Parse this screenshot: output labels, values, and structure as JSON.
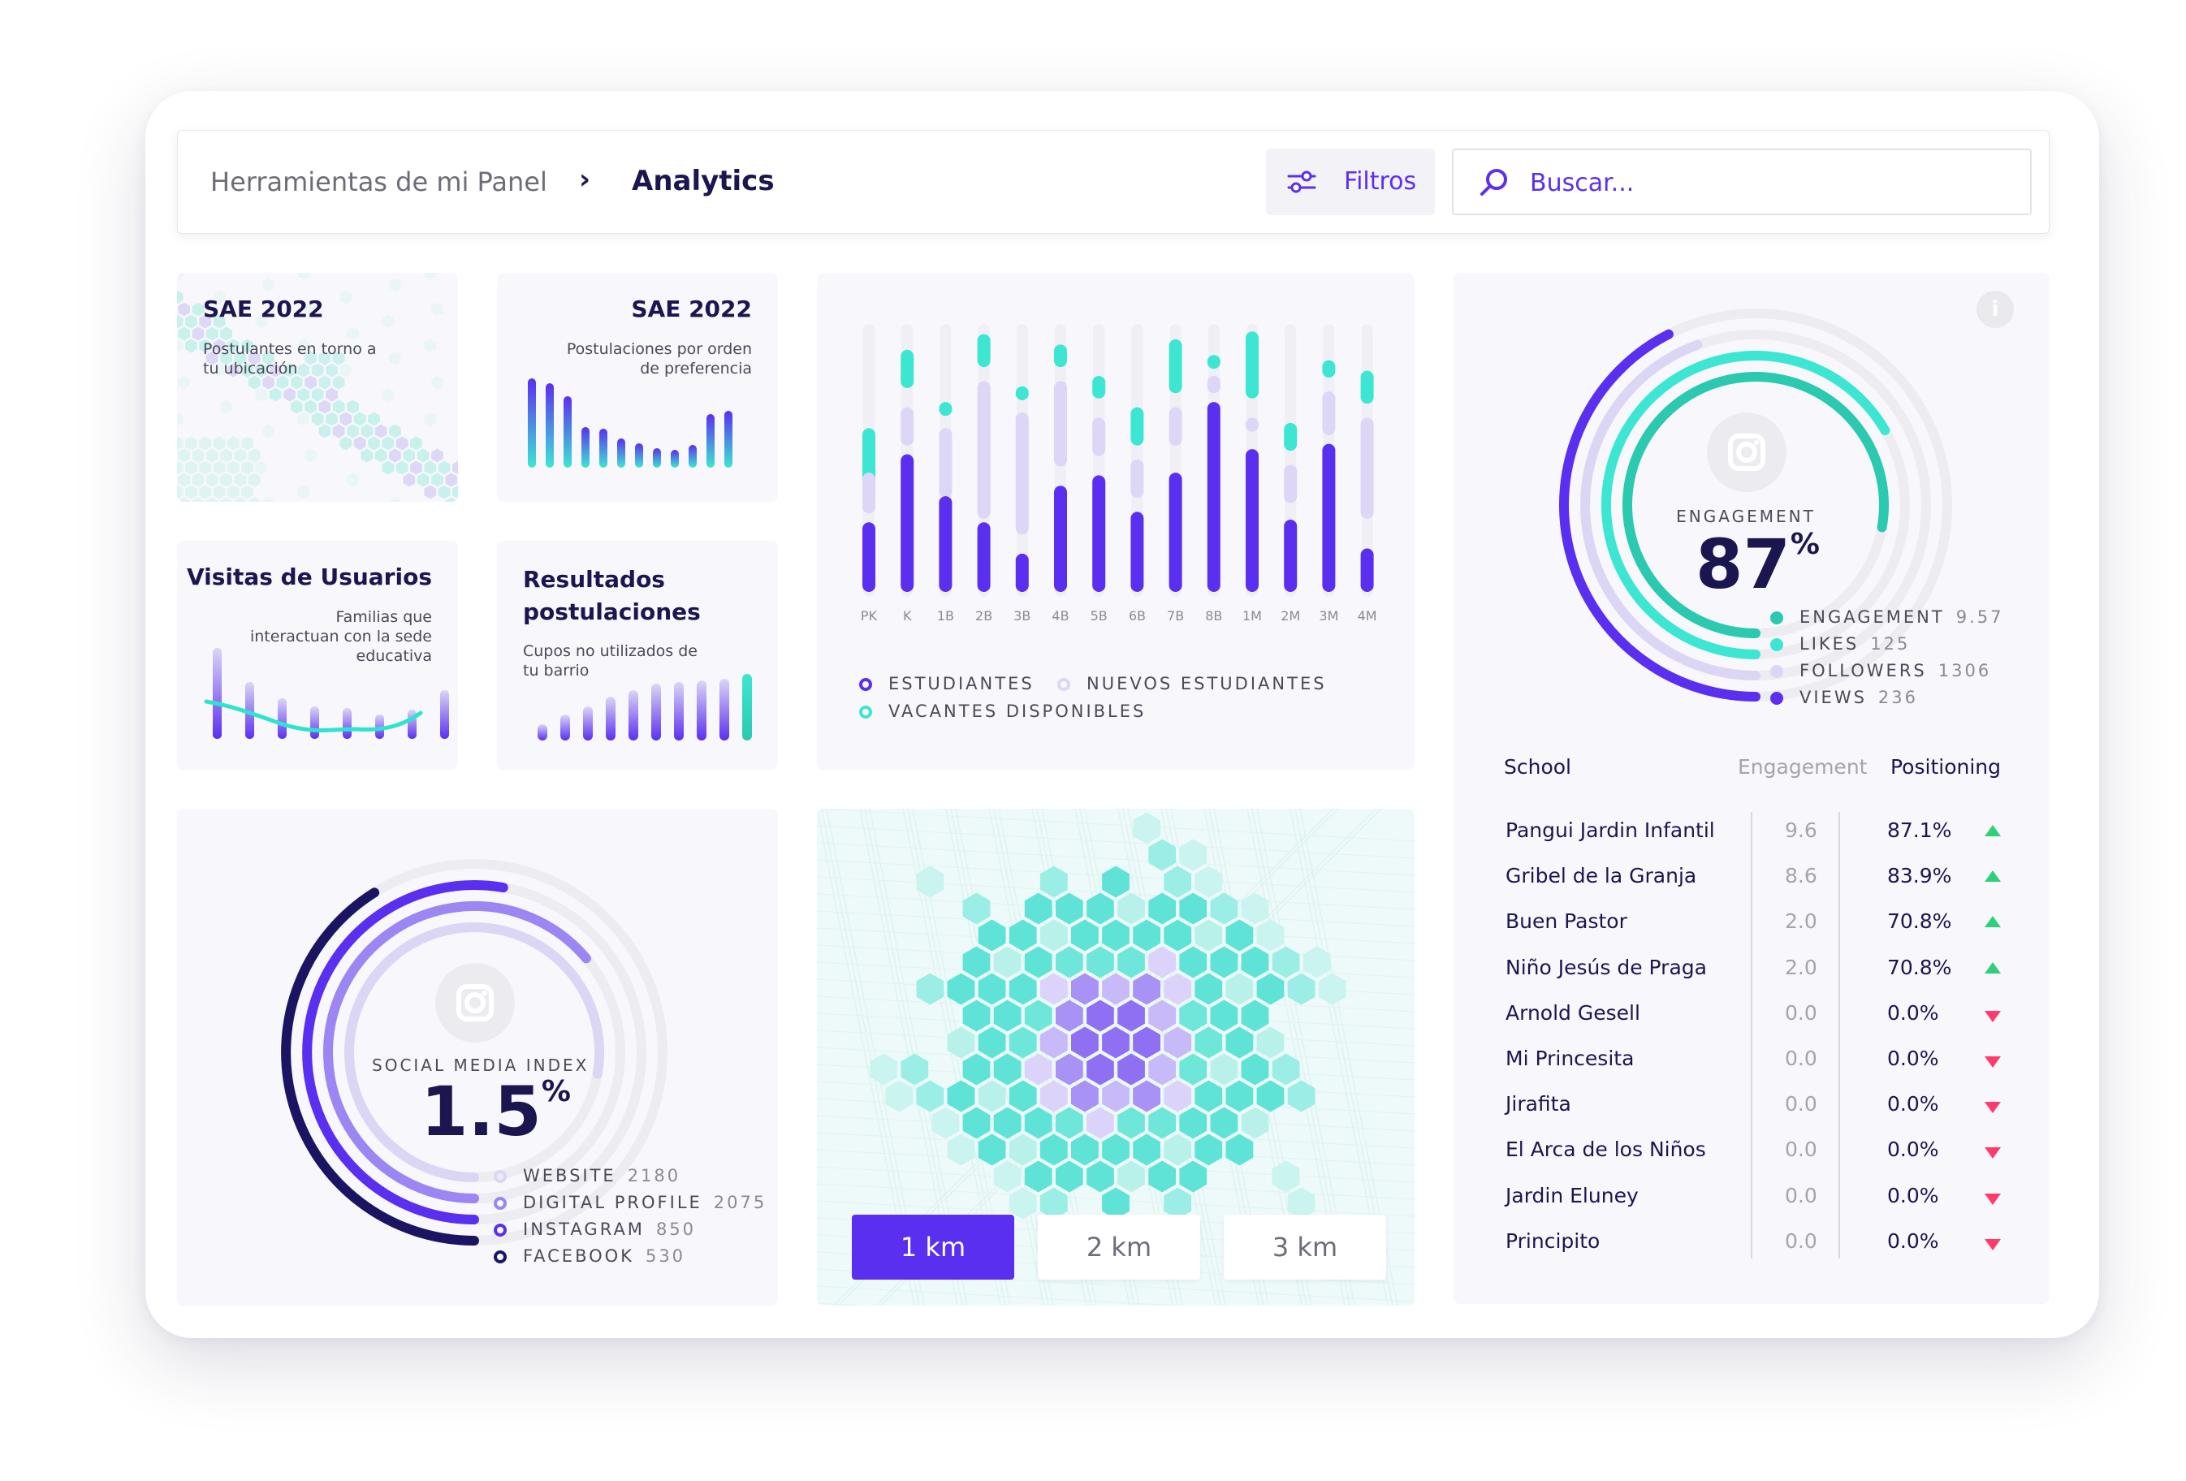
{
  "header": {
    "breadcrumb_root": "Herramientas de mi Panel",
    "breadcrumb_current": "Analytics",
    "filters_label": "Filtros",
    "search_placeholder": "Buscar..."
  },
  "cards": {
    "sae_map": {
      "title": "SAE 2022",
      "subtitle": "Postulantes en torno a tu ubicación"
    },
    "sae_pref": {
      "title": "SAE 2022",
      "subtitle": "Postulaciones por orden de preferencia"
    },
    "visitas": {
      "title": "Visitas de Usuarios",
      "subtitle": "Familias que interactuan con la sede educativa"
    },
    "resultados": {
      "title": "Resultados postulaciones",
      "subtitle": "Cupos no utilizados de tu barrio"
    }
  },
  "bar_chart": {
    "categories": [
      "PK",
      "K",
      "1B",
      "2B",
      "3B",
      "4B",
      "5B",
      "6B",
      "7B",
      "8B",
      "1M",
      "2M",
      "3M",
      "4M"
    ],
    "legend": {
      "students": "ESTUDIANTES",
      "new_students": "NUEVOS ESTUDIANTES",
      "vacancies": "VACANTES DISPONIBLES"
    }
  },
  "engagement": {
    "label": "ENGAGEMENT",
    "value": "87",
    "unit": "%",
    "legend": [
      {
        "label": "ENGAGEMENT",
        "value": "9.57",
        "color": "#2bc9b0"
      },
      {
        "label": "LIKES",
        "value": "125",
        "color": "#3de6d3"
      },
      {
        "label": "FOLLOWERS",
        "value": "1306",
        "color": "#dcd6f5"
      },
      {
        "label": "VIEWS",
        "value": "236",
        "color": "#5b2ff0"
      }
    ]
  },
  "social": {
    "label": "SOCIAL MEDIA INDEX",
    "value": "1.5",
    "unit": "%",
    "legend": [
      {
        "label": "WEBSITE",
        "value": "2180",
        "color": "#dcd6f5"
      },
      {
        "label": "DIGITAL PROFILE",
        "value": "2075",
        "color": "#9b86f3"
      },
      {
        "label": "INSTAGRAM",
        "value": "850",
        "color": "#5b2ff0"
      },
      {
        "label": "FACEBOOK",
        "value": "530",
        "color": "#1b1463"
      }
    ]
  },
  "map": {
    "km_buttons": [
      "1 km",
      "2 km",
      "3 km"
    ],
    "active": "1 km"
  },
  "table": {
    "headers": {
      "school": "School",
      "engagement": "Engagement",
      "positioning": "Positioning"
    },
    "rows": [
      {
        "school": "Pangui Jardin Infantil",
        "engagement": "9.6",
        "positioning": "87.1%",
        "trend": "up"
      },
      {
        "school": "Gribel de la Granja",
        "engagement": "8.6",
        "positioning": "83.9%",
        "trend": "up"
      },
      {
        "school": "Buen Pastor",
        "engagement": "2.0",
        "positioning": "70.8%",
        "trend": "up"
      },
      {
        "school": "Niño Jesús de Praga",
        "engagement": "2.0",
        "positioning": "70.8%",
        "trend": "up"
      },
      {
        "school": "Arnold Gesell",
        "engagement": "0.0",
        "positioning": "0.0%",
        "trend": "down"
      },
      {
        "school": "Mi Princesita",
        "engagement": "0.0",
        "positioning": "0.0%",
        "trend": "down"
      },
      {
        "school": "Jirafita",
        "engagement": "0.0",
        "positioning": "0.0%",
        "trend": "down"
      },
      {
        "school": "El Arca de los Niños",
        "engagement": "0.0",
        "positioning": "0.0%",
        "trend": "down"
      },
      {
        "school": "Jardin Eluney",
        "engagement": "0.0",
        "positioning": "0.0%",
        "trend": "down"
      },
      {
        "school": "Principito",
        "engagement": "0.0",
        "positioning": "0.0%",
        "trend": "down"
      }
    ]
  },
  "colors": {
    "purple": "#5b2ff0",
    "teal": "#2fe3cf",
    "lavender": "#d7d0f6",
    "navy": "#1c1650"
  }
}
